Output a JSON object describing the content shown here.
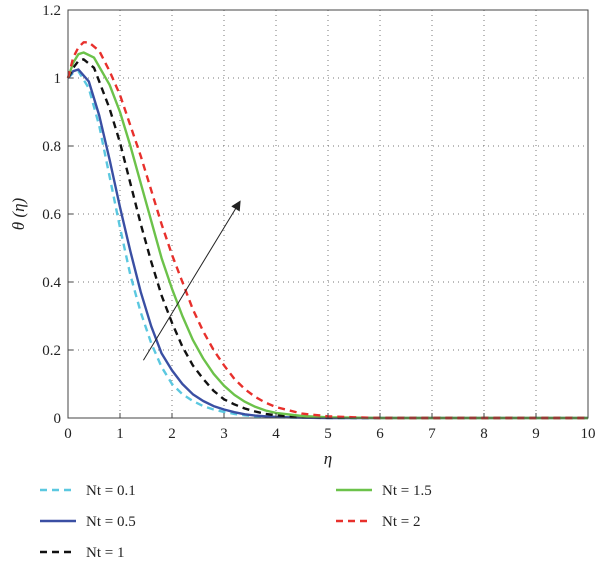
{
  "chart_data": {
    "type": "line",
    "xlabel": "η",
    "ylabel": "θ (η)",
    "xlim": [
      0,
      10
    ],
    "ylim": [
      0,
      1.2
    ],
    "xticks": [
      "0",
      "1",
      "2",
      "3",
      "4",
      "5",
      "6",
      "7",
      "8",
      "9",
      "10"
    ],
    "yticks": [
      "0",
      "0.2",
      "0.4",
      "0.6",
      "0.8",
      "1",
      "1.2"
    ],
    "grid": true,
    "legend_placement": "bottom",
    "series": [
      {
        "name": "Nt = 0.1",
        "color": "#5bc8e0",
        "dash": "dashed",
        "x": [
          0,
          0.1,
          0.2,
          0.4,
          0.6,
          0.8,
          1.0,
          1.2,
          1.4,
          1.6,
          1.8,
          2.0,
          2.2,
          2.4,
          2.6,
          2.8,
          3.0,
          3.2,
          3.4,
          3.6,
          3.8,
          4.0,
          4.5,
          5.0,
          6.0,
          10.0
        ],
        "y": [
          1.0,
          1.015,
          1.02,
          0.97,
          0.86,
          0.71,
          0.56,
          0.42,
          0.31,
          0.22,
          0.15,
          0.1,
          0.07,
          0.05,
          0.035,
          0.025,
          0.018,
          0.012,
          0.008,
          0.005,
          0.003,
          0.002,
          0.001,
          0.0,
          0.0,
          0.0
        ]
      },
      {
        "name": "Nt = 0.5",
        "color": "#3a4fa3",
        "dash": "solid",
        "x": [
          0,
          0.1,
          0.2,
          0.4,
          0.6,
          0.8,
          1.0,
          1.2,
          1.4,
          1.6,
          1.8,
          2.0,
          2.2,
          2.4,
          2.6,
          2.8,
          3.0,
          3.2,
          3.4,
          3.6,
          3.8,
          4.0,
          4.5,
          5.0,
          6.0,
          10.0
        ],
        "y": [
          1.0,
          1.02,
          1.025,
          0.99,
          0.89,
          0.76,
          0.62,
          0.49,
          0.37,
          0.27,
          0.19,
          0.14,
          0.1,
          0.07,
          0.05,
          0.035,
          0.025,
          0.017,
          0.011,
          0.007,
          0.005,
          0.003,
          0.001,
          0.0,
          0.0,
          0.0
        ]
      },
      {
        "name": "Nt = 1",
        "color": "#111111",
        "dash": "dashed",
        "x": [
          0,
          0.1,
          0.2,
          0.3,
          0.5,
          0.8,
          1.0,
          1.2,
          1.4,
          1.6,
          1.8,
          2.0,
          2.2,
          2.4,
          2.6,
          2.8,
          3.0,
          3.2,
          3.4,
          3.6,
          3.8,
          4.0,
          4.5,
          5.0,
          6.0,
          10.0
        ],
        "y": [
          1.0,
          1.03,
          1.05,
          1.055,
          1.03,
          0.91,
          0.81,
          0.69,
          0.57,
          0.46,
          0.36,
          0.28,
          0.21,
          0.155,
          0.115,
          0.08,
          0.055,
          0.04,
          0.028,
          0.019,
          0.012,
          0.008,
          0.003,
          0.001,
          0.0,
          0.0
        ]
      },
      {
        "name": "Nt = 1.5",
        "color": "#6cc24a",
        "dash": "solid",
        "x": [
          0,
          0.1,
          0.2,
          0.3,
          0.5,
          0.8,
          1.0,
          1.2,
          1.4,
          1.6,
          1.8,
          2.0,
          2.2,
          2.4,
          2.6,
          2.8,
          3.0,
          3.2,
          3.4,
          3.6,
          3.8,
          4.0,
          4.5,
          5.0,
          6.0,
          10.0
        ],
        "y": [
          1.0,
          1.045,
          1.07,
          1.075,
          1.06,
          0.98,
          0.9,
          0.8,
          0.69,
          0.58,
          0.47,
          0.38,
          0.3,
          0.23,
          0.175,
          0.13,
          0.095,
          0.068,
          0.048,
          0.033,
          0.022,
          0.015,
          0.006,
          0.002,
          0.0,
          0.0
        ]
      },
      {
        "name": "Nt = 2",
        "color": "#e8302c",
        "dash": "dashed",
        "x": [
          0,
          0.1,
          0.2,
          0.3,
          0.4,
          0.6,
          0.8,
          1.0,
          1.2,
          1.4,
          1.6,
          1.8,
          2.0,
          2.2,
          2.4,
          2.6,
          2.8,
          3.0,
          3.2,
          3.4,
          3.6,
          3.8,
          4.0,
          4.5,
          5.0,
          5.5,
          6.0,
          10.0
        ],
        "y": [
          1.0,
          1.06,
          1.09,
          1.105,
          1.105,
          1.08,
          1.02,
          0.95,
          0.86,
          0.77,
          0.67,
          0.57,
          0.48,
          0.4,
          0.32,
          0.255,
          0.2,
          0.155,
          0.115,
          0.085,
          0.062,
          0.045,
          0.032,
          0.013,
          0.005,
          0.002,
          0.0,
          0.0
        ]
      }
    ],
    "annotations": [
      {
        "type": "arrow",
        "from": [
          1.45,
          0.17
        ],
        "to": [
          3.3,
          0.635
        ]
      }
    ]
  }
}
